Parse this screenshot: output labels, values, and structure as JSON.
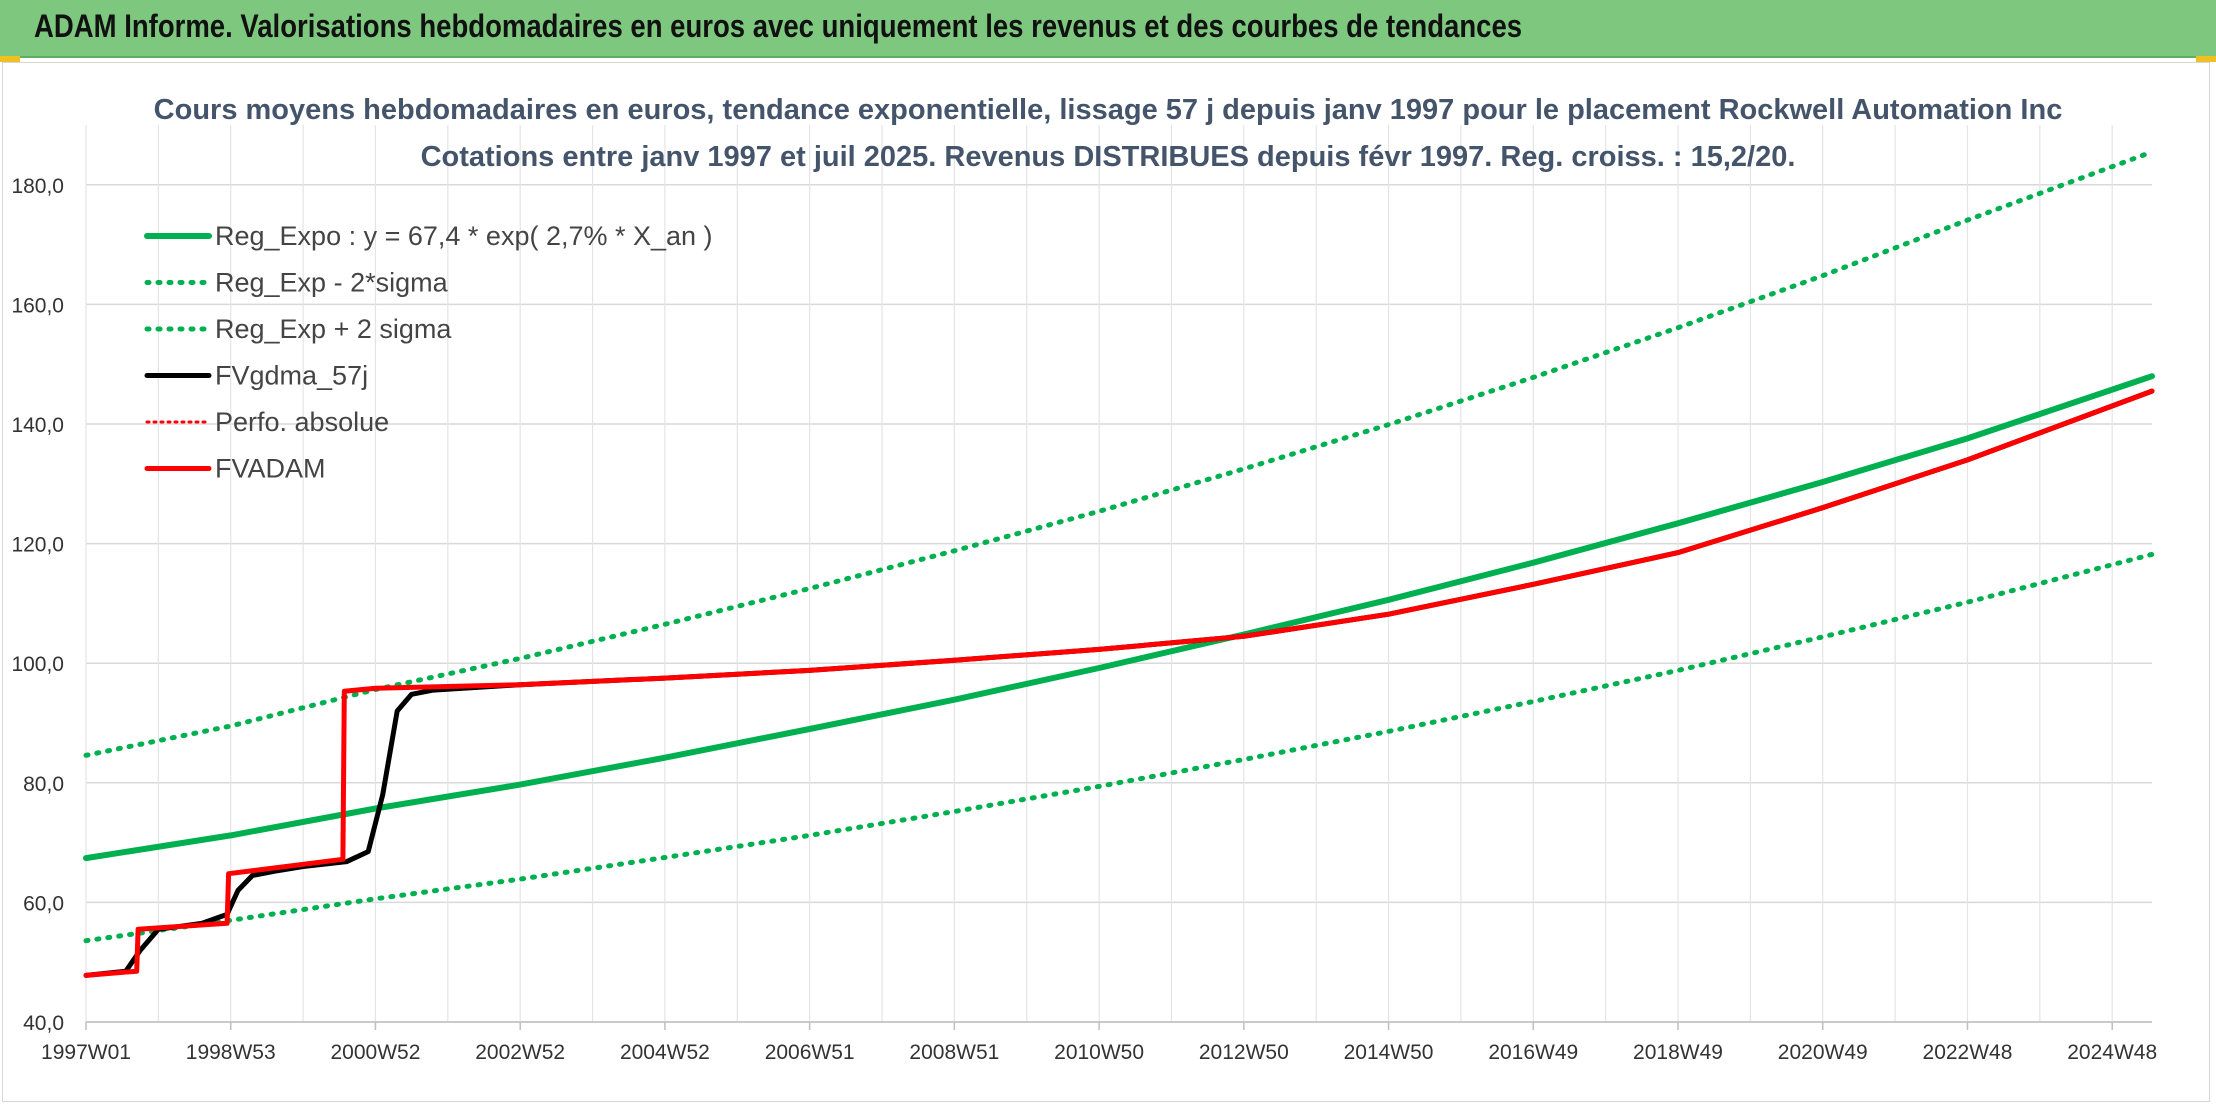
{
  "banner": {
    "title": "ADAM Informe. Valorisations hebdomadaires en euros avec uniquement les revenus et des courbes de tendances",
    "background": "#7dc87e"
  },
  "chart_data": {
    "type": "line",
    "title": "Cours moyens hebdomadaires en euros, tendance exponentielle, lissage 57 j depuis janv 1997 pour le placement Rockwell Automation Inc",
    "subtitle": "Cotations entre janv 1997 et juil 2025. Revenus DISTRIBUES depuis févr 1997. Reg. croiss. : 15,2/20.",
    "xlabel": "",
    "ylabel": "",
    "ylim": [
      40,
      190
    ],
    "yticks": [
      "40,0",
      "60,0",
      "80,0",
      "100,0",
      "120,0",
      "140,0",
      "160,0",
      "180,0"
    ],
    "xlim": [
      1997.0,
      2025.55
    ],
    "xticks": [
      {
        "label": "1997W01",
        "x": 1997.0
      },
      {
        "label": "1998W53",
        "x": 1999.0
      },
      {
        "label": "2000W52",
        "x": 2001.0
      },
      {
        "label": "2002W52",
        "x": 2003.0
      },
      {
        "label": "2004W52",
        "x": 2005.0
      },
      {
        "label": "2006W51",
        "x": 2007.0
      },
      {
        "label": "2008W51",
        "x": 2009.0
      },
      {
        "label": "2010W50",
        "x": 2011.0
      },
      {
        "label": "2012W50",
        "x": 2013.0
      },
      {
        "label": "2014W50",
        "x": 2015.0
      },
      {
        "label": "2016W49",
        "x": 2017.0
      },
      {
        "label": "2018W49",
        "x": 2019.0
      },
      {
        "label": "2020W49",
        "x": 2021.0
      },
      {
        "label": "2022W48",
        "x": 2023.0
      },
      {
        "label": "2024W48",
        "x": 2025.0
      }
    ],
    "grid": true,
    "legend_position": "top-left",
    "series": [
      {
        "name": "Reg_Expo : y = 67,4 * exp( 2,7% *  X_an )",
        "color": "#00b050",
        "style": "solid",
        "x": [
          1997.0,
          1999.0,
          2001.0,
          2003.0,
          2005.0,
          2007.0,
          2009.0,
          2011.0,
          2013.0,
          2015.0,
          2017.0,
          2019.0,
          2021.0,
          2023.0,
          2025.55
        ],
        "values": [
          67.4,
          71.2,
          75.7,
          79.7,
          84.2,
          89.0,
          93.9,
          99.2,
          104.8,
          110.6,
          116.8,
          123.4,
          130.3,
          137.6,
          148.0
        ]
      },
      {
        "name": "Reg_Exp - 2*sigma",
        "color": "#00b050",
        "style": "dotted",
        "x": [
          1997.0,
          1999.0,
          2001.0,
          2003.0,
          2005.0,
          2007.0,
          2009.0,
          2011.0,
          2013.0,
          2015.0,
          2017.0,
          2019.0,
          2021.0,
          2023.0,
          2025.55
        ],
        "values": [
          53.6,
          57.0,
          60.6,
          63.9,
          67.5,
          71.2,
          75.2,
          79.4,
          83.9,
          88.6,
          93.6,
          98.8,
          104.4,
          110.2,
          118.2
        ]
      },
      {
        "name": "Reg_Exp + 2 sigma",
        "color": "#00b050",
        "style": "dotted",
        "x": [
          1997.0,
          1999.0,
          2001.0,
          2003.0,
          2005.0,
          2007.0,
          2009.0,
          2011.0,
          2013.0,
          2015.0,
          2017.0,
          2019.0,
          2021.0,
          2023.0,
          2025.55
        ],
        "values": [
          84.6,
          89.5,
          95.6,
          100.8,
          106.5,
          112.5,
          118.8,
          125.4,
          132.5,
          139.9,
          147.8,
          156.1,
          164.8,
          174.1,
          185.5
        ]
      },
      {
        "name": "FVgdma_57j",
        "color": "#000000",
        "style": "solid",
        "x": [
          1997.0,
          1997.55,
          1997.75,
          1998.0,
          1998.6,
          1998.95,
          1999.1,
          1999.3,
          1999.6,
          2000.0,
          2000.6,
          2000.9,
          2001.1,
          2001.3,
          2001.5,
          2001.8,
          2003.0,
          2005.0,
          2007.0,
          2009.0,
          2011.0,
          2013.0,
          2015.0,
          2017.0,
          2019.0,
          2021.0,
          2023.0,
          2025.55
        ],
        "values": [
          47.8,
          48.5,
          52.0,
          55.5,
          56.5,
          58.0,
          62.0,
          64.5,
          65.2,
          66.0,
          66.8,
          68.5,
          78.0,
          92.0,
          94.8,
          95.5,
          96.4,
          97.5,
          98.8,
          100.5,
          102.3,
          104.5,
          108.2,
          113.2,
          118.5,
          126.0,
          134.0,
          145.5
        ]
      },
      {
        "name": "Perfo. absolue",
        "color": "#ff0000",
        "style": "dotted",
        "x": [
          1997.0,
          1997.7,
          1997.72,
          1998.95,
          1998.97,
          2000.55,
          2000.57,
          2001.0,
          2003.0,
          2005.0,
          2007.0,
          2009.0,
          2011.0,
          2013.0,
          2015.0,
          2017.0,
          2019.0,
          2021.0,
          2023.0,
          2025.55
        ],
        "values": [
          47.8,
          48.5,
          55.5,
          56.5,
          64.8,
          67.2,
          95.3,
          95.8,
          96.4,
          97.5,
          98.8,
          100.5,
          102.3,
          104.5,
          108.2,
          113.2,
          118.5,
          126.0,
          134.0,
          145.5
        ]
      },
      {
        "name": "FVADAM",
        "color": "#ff0000",
        "style": "solid",
        "x": [
          1997.0,
          1997.7,
          1997.72,
          1998.95,
          1998.97,
          2000.55,
          2000.57,
          2001.0,
          2003.0,
          2005.0,
          2007.0,
          2009.0,
          2011.0,
          2013.0,
          2015.0,
          2017.0,
          2019.0,
          2021.0,
          2023.0,
          2025.55
        ],
        "values": [
          47.8,
          48.5,
          55.5,
          56.5,
          64.8,
          67.2,
          95.3,
          95.8,
          96.4,
          97.5,
          98.8,
          100.5,
          102.3,
          104.5,
          108.2,
          113.2,
          118.5,
          126.0,
          134.0,
          145.5
        ]
      }
    ]
  }
}
